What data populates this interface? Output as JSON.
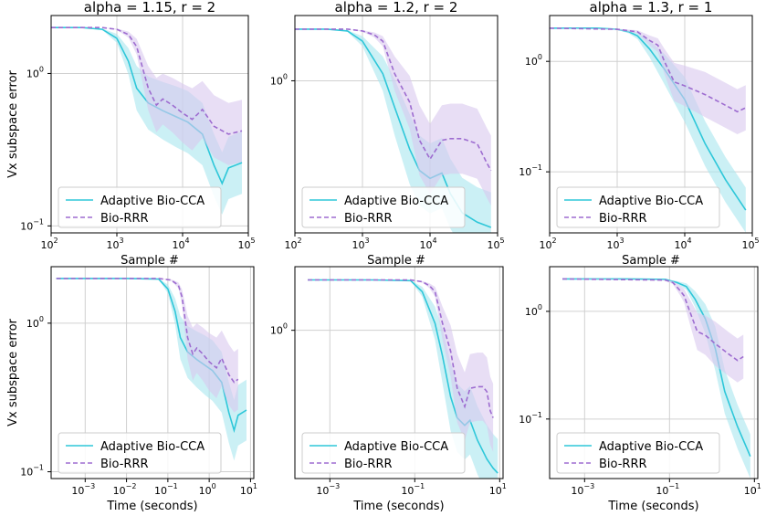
{
  "colors": {
    "adaptive": "#2ec7d9",
    "adaptive_band": "#a8e6ef",
    "biorrr": "#9d6cd0",
    "biorrr_band": "#d9c8ee",
    "grid": "#d0d0d0"
  },
  "chart_data": [
    {
      "type": "line",
      "title": "alpha = 1.15, r = 2",
      "xlabel": "Sample #",
      "ylabel": "Vx subspace error",
      "xscale": "log",
      "yscale": "log",
      "grid": true,
      "legend": "lower-left",
      "xlim": [
        100,
        100000
      ],
      "ylim": [
        0.09,
        2.4
      ],
      "xticks": [
        {
          "v": 100,
          "b": "10",
          "e": "2"
        },
        {
          "v": 1000,
          "b": "10",
          "e": "3"
        },
        {
          "v": 10000,
          "b": "10",
          "e": "4"
        },
        {
          "v": 100000,
          "b": "10",
          "e": "5"
        }
      ],
      "yticks": [
        {
          "v": 1,
          "b": "10",
          "e": "0"
        },
        {
          "v": 0.1,
          "b": "10",
          "e": "−1"
        }
      ],
      "series": [
        {
          "name": "Adaptive Bio-CCA",
          "style": "solid",
          "x": [
            100,
            300,
            600,
            1000,
            1500,
            2000,
            3000,
            5000,
            8000,
            12000,
            20000,
            30000,
            40000,
            50000,
            80000
          ],
          "y": [
            2.0,
            2.0,
            1.95,
            1.7,
            1.2,
            0.8,
            0.64,
            0.57,
            0.52,
            0.48,
            0.4,
            0.25,
            0.19,
            0.24,
            0.26
          ]
        },
        {
          "name": "Bio-RRR",
          "style": "dashed",
          "x": [
            100,
            600,
            1000,
            1500,
            2000,
            3000,
            4000,
            5000,
            7000,
            10000,
            14000,
            20000,
            30000,
            50000,
            80000
          ],
          "y": [
            2.0,
            2.0,
            1.95,
            1.8,
            1.5,
            0.8,
            0.62,
            0.68,
            0.62,
            0.55,
            0.5,
            0.58,
            0.45,
            0.4,
            0.42
          ]
        }
      ]
    },
    {
      "type": "line",
      "title": "alpha = 1.2, r = 2",
      "xlabel": "Sample #",
      "xscale": "log",
      "yscale": "log",
      "grid": true,
      "legend": "lower-left",
      "xlim": [
        100,
        100000
      ],
      "ylim": [
        0.13,
        2.4
      ],
      "xticks": [
        {
          "v": 100,
          "b": "10",
          "e": "2"
        },
        {
          "v": 1000,
          "b": "10",
          "e": "3"
        },
        {
          "v": 10000,
          "b": "10",
          "e": "4"
        },
        {
          "v": 100000,
          "b": "10",
          "e": "5"
        }
      ],
      "yticks": [
        {
          "v": 1,
          "b": "10",
          "e": "0"
        }
      ],
      "series": [
        {
          "name": "Adaptive Bio-CCA",
          "style": "solid",
          "x": [
            100,
            300,
            600,
            1000,
            2000,
            3000,
            5000,
            7000,
            10000,
            15000,
            20000,
            30000,
            50000,
            80000
          ],
          "y": [
            2.0,
            2.0,
            1.95,
            1.7,
            1.1,
            0.7,
            0.4,
            0.3,
            0.27,
            0.29,
            0.22,
            0.17,
            0.15,
            0.14
          ]
        },
        {
          "name": "Bio-RRR",
          "style": "dashed",
          "x": [
            100,
            600,
            1000,
            1500,
            2000,
            3000,
            5000,
            7000,
            10000,
            15000,
            20000,
            30000,
            50000,
            70000,
            80000
          ],
          "y": [
            2.0,
            2.0,
            1.95,
            1.85,
            1.7,
            1.1,
            0.75,
            0.45,
            0.35,
            0.45,
            0.46,
            0.46,
            0.43,
            0.33,
            0.3
          ]
        }
      ]
    },
    {
      "type": "line",
      "title": "alpha = 1.3, r = 1",
      "xlabel": "Sample #",
      "xscale": "log",
      "yscale": "log",
      "grid": true,
      "legend": "lower-left",
      "xlim": [
        100,
        100000
      ],
      "ylim": [
        0.028,
        2.6
      ],
      "xticks": [
        {
          "v": 100,
          "b": "10",
          "e": "2"
        },
        {
          "v": 1000,
          "b": "10",
          "e": "3"
        },
        {
          "v": 10000,
          "b": "10",
          "e": "4"
        },
        {
          "v": 100000,
          "b": "10",
          "e": "5"
        }
      ],
      "yticks": [
        {
          "v": 1,
          "b": "10",
          "e": "0"
        },
        {
          "v": 0.1,
          "b": "10",
          "e": "−1"
        }
      ],
      "series": [
        {
          "name": "Adaptive Bio-CCA",
          "style": "solid",
          "x": [
            100,
            500,
            1000,
            1500,
            2000,
            3000,
            5000,
            10000,
            20000,
            40000,
            80000
          ],
          "y": [
            2.0,
            2.0,
            1.95,
            1.85,
            1.7,
            1.3,
            0.85,
            0.45,
            0.18,
            0.085,
            0.045
          ]
        },
        {
          "name": "Bio-RRR",
          "style": "dashed",
          "x": [
            100,
            1000,
            2000,
            3000,
            4000,
            5000,
            7000,
            10000,
            20000,
            40000,
            60000,
            80000
          ],
          "y": [
            2.0,
            1.95,
            1.85,
            1.55,
            1.4,
            1.0,
            0.65,
            0.6,
            0.5,
            0.4,
            0.35,
            0.38
          ]
        }
      ]
    },
    {
      "type": "line",
      "xlabel": "Time (seconds)",
      "ylabel": "Vx subspace error",
      "xscale": "log",
      "yscale": "log",
      "grid": true,
      "legend": "lower-left",
      "xlim": [
        0.00015,
        12
      ],
      "ylim": [
        0.09,
        2.4
      ],
      "xticks": [
        {
          "v": 0.001,
          "b": "10",
          "e": "−3"
        },
        {
          "v": 0.01,
          "b": "10",
          "e": "−2"
        },
        {
          "v": 0.1,
          "b": "10",
          "e": "−1"
        },
        {
          "v": 1,
          "b": "10",
          "e": "0"
        },
        {
          "v": 10,
          "b": "10",
          "e": "1"
        }
      ],
      "yticks": [
        {
          "v": 1,
          "b": "10",
          "e": "0"
        },
        {
          "v": 0.1,
          "b": "10",
          "e": "−1"
        }
      ],
      "series": [
        {
          "name": "Adaptive Bio-CCA",
          "style": "solid",
          "x": [
            0.0002,
            0.01,
            0.06,
            0.1,
            0.15,
            0.2,
            0.3,
            0.5,
            0.8,
            1.2,
            2,
            3,
            4,
            5,
            8
          ],
          "y": [
            2.0,
            2.0,
            1.98,
            1.7,
            1.2,
            0.8,
            0.64,
            0.57,
            0.52,
            0.48,
            0.4,
            0.25,
            0.19,
            0.24,
            0.26
          ]
        },
        {
          "name": "Bio-RRR",
          "style": "dashed",
          "x": [
            0.0002,
            0.06,
            0.12,
            0.18,
            0.22,
            0.3,
            0.4,
            0.5,
            0.7,
            1,
            1.5,
            2,
            3,
            4,
            5
          ],
          "y": [
            2.0,
            2.0,
            1.95,
            1.8,
            1.5,
            0.8,
            0.62,
            0.68,
            0.62,
            0.55,
            0.5,
            0.58,
            0.45,
            0.4,
            0.42
          ]
        }
      ]
    },
    {
      "type": "line",
      "xlabel": "Time (seconds)",
      "xscale": "log",
      "yscale": "log",
      "grid": true,
      "legend": "lower-left",
      "xlim": [
        0.00015,
        12
      ],
      "ylim": [
        0.13,
        2.4
      ],
      "xticks": [
        {
          "v": 0.001,
          "b": "10",
          "e": "−3"
        },
        {
          "v": 0.1,
          "b": "10",
          "e": "−1"
        },
        {
          "v": 10,
          "b": "10",
          "e": "1"
        }
      ],
      "yticks": [
        {
          "v": 1,
          "b": "10",
          "e": "0"
        }
      ],
      "series": [
        {
          "name": "Adaptive Bio-CCA",
          "style": "solid",
          "x": [
            0.0003,
            0.01,
            0.08,
            0.15,
            0.3,
            0.45,
            0.7,
            1,
            1.5,
            2,
            3,
            5,
            7,
            9
          ],
          "y": [
            2.0,
            2.0,
            1.98,
            1.7,
            1.1,
            0.7,
            0.4,
            0.3,
            0.27,
            0.29,
            0.22,
            0.17,
            0.15,
            0.14
          ]
        },
        {
          "name": "Bio-RRR",
          "style": "dashed",
          "x": [
            0.0003,
            0.08,
            0.15,
            0.22,
            0.3,
            0.45,
            0.7,
            1,
            1.5,
            2,
            3,
            4,
            5,
            6,
            7
          ],
          "y": [
            2.0,
            2.0,
            1.95,
            1.85,
            1.7,
            1.1,
            0.75,
            0.45,
            0.35,
            0.45,
            0.46,
            0.46,
            0.43,
            0.33,
            0.3
          ]
        }
      ]
    },
    {
      "type": "line",
      "xlabel": "Time (seconds)",
      "xscale": "log",
      "yscale": "log",
      "grid": true,
      "legend": "lower-left",
      "xlim": [
        0.00015,
        12
      ],
      "ylim": [
        0.028,
        2.6
      ],
      "xticks": [
        {
          "v": 0.001,
          "b": "10",
          "e": "−3"
        },
        {
          "v": 0.1,
          "b": "10",
          "e": "−1"
        },
        {
          "v": 10,
          "b": "10",
          "e": "1"
        }
      ],
      "yticks": [
        {
          "v": 1,
          "b": "10",
          "e": "0"
        },
        {
          "v": 0.1,
          "b": "10",
          "e": "−1"
        }
      ],
      "series": [
        {
          "name": "Adaptive Bio-CCA",
          "style": "solid",
          "x": [
            0.0003,
            0.01,
            0.08,
            0.15,
            0.25,
            0.4,
            0.7,
            1.2,
            2,
            4,
            8
          ],
          "y": [
            2.0,
            2.0,
            1.98,
            1.85,
            1.7,
            1.3,
            0.85,
            0.45,
            0.18,
            0.085,
            0.045
          ]
        },
        {
          "name": "Bio-RRR",
          "style": "dashed",
          "x": [
            0.0003,
            0.08,
            0.12,
            0.18,
            0.22,
            0.3,
            0.45,
            0.7,
            1.2,
            2.5,
            4,
            5.5
          ],
          "y": [
            2.0,
            1.95,
            1.85,
            1.55,
            1.4,
            1.0,
            0.65,
            0.6,
            0.5,
            0.4,
            0.35,
            0.38
          ]
        }
      ]
    }
  ]
}
